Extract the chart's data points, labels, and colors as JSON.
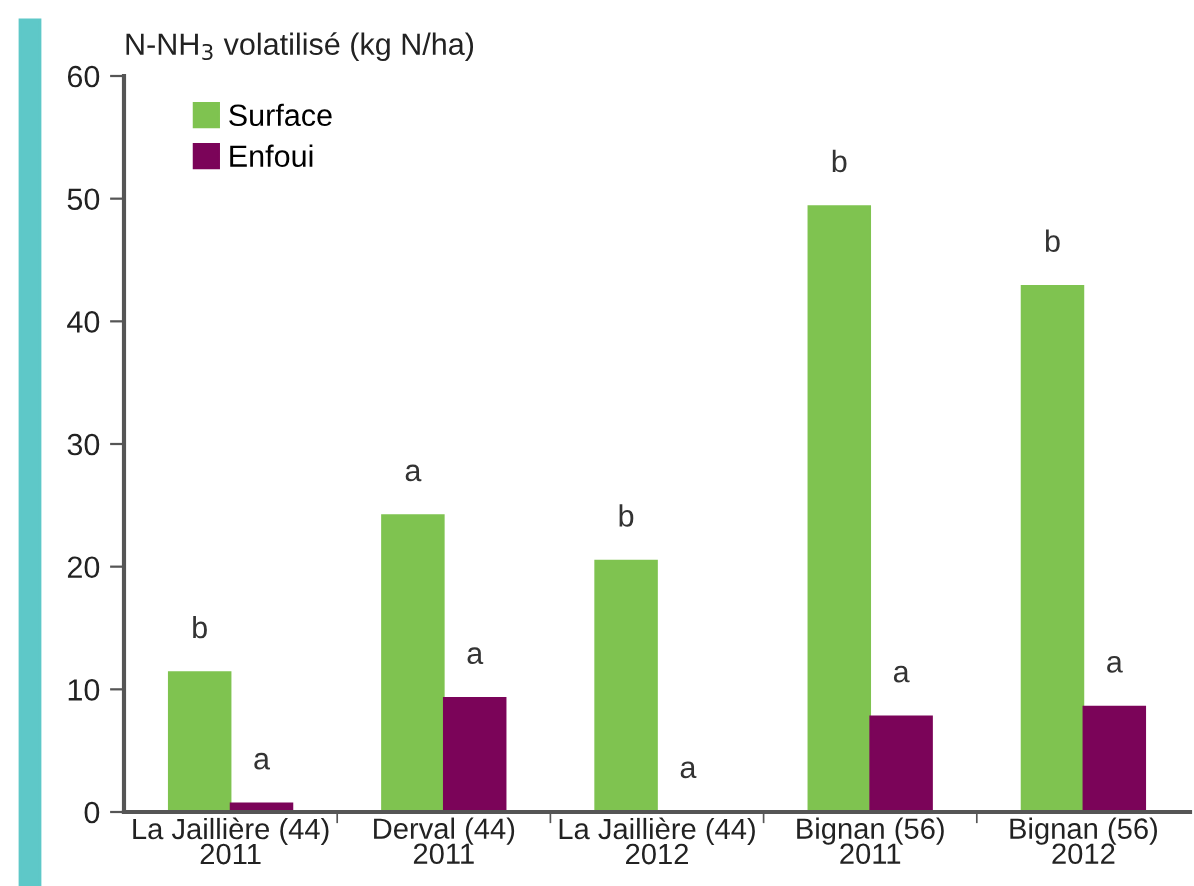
{
  "chart_data": {
    "type": "bar",
    "ylabel": "N-NH$_{3}$ volatilisé (kg N/ha)",
    "categories": [
      "La Jaillière (44)\n2011",
      "Derval (44)\n2011",
      "La Jaillière (44)\n2012",
      "Bignan (56)\n2011",
      "Bignan (56)\n2012"
    ],
    "series": [
      {
        "name": "Surface",
        "color": "#7fc350",
        "values": [
          11.4,
          24.2,
          20.5,
          49.4,
          42.9
        ],
        "value_labels": [
          "b",
          "a",
          "b",
          "b",
          "b"
        ]
      },
      {
        "name": "Enfoui",
        "color": "#7b0459",
        "values": [
          0.7,
          9.3,
          0,
          7.8,
          8.6
        ],
        "value_labels": [
          "a",
          "a",
          "a",
          "a",
          "a"
        ]
      }
    ],
    "ylim": [
      0,
      60
    ],
    "yticks": [
      0,
      10,
      20,
      30,
      40,
      50,
      60
    ],
    "grid": false,
    "legend": "top left"
  }
}
